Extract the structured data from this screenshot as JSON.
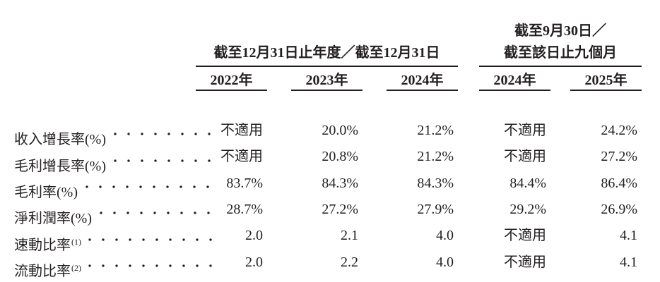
{
  "table": {
    "group1": {
      "title": "截至12月31日止年度／截至12月31日",
      "years": [
        "2022年",
        "2023年",
        "2024年"
      ]
    },
    "group2": {
      "title_line1": "截至9月30日／",
      "title_line2": "截至該日止九個月",
      "years": [
        "2024年",
        "2025年"
      ]
    },
    "rows": [
      {
        "label": "收入增長率(%)",
        "sup": "",
        "values": [
          "不適用",
          "20.0%",
          "21.2%",
          "不適用",
          "24.2%"
        ]
      },
      {
        "label": "毛利增長率(%)",
        "sup": "",
        "values": [
          "不適用",
          "20.8%",
          "21.2%",
          "不適用",
          "27.2%"
        ]
      },
      {
        "label": "毛利率(%)",
        "sup": "",
        "values": [
          "83.7%",
          "84.3%",
          "84.3%",
          "84.4%",
          "86.4%"
        ]
      },
      {
        "label": "淨利潤率(%)",
        "sup": "",
        "values": [
          "28.7%",
          "27.2%",
          "27.9%",
          "29.2%",
          "26.9%"
        ]
      },
      {
        "label": "速動比率",
        "sup": "(1)",
        "values": [
          "2.0",
          "2.1",
          "4.0",
          "不適用",
          "4.1"
        ]
      },
      {
        "label": "流動比率",
        "sup": "(2)",
        "values": [
          "2.0",
          "2.2",
          "4.0",
          "不適用",
          "4.1"
        ]
      }
    ],
    "colors": {
      "text": "#231f20",
      "rule": "#231f20",
      "background": "#ffffff"
    }
  }
}
